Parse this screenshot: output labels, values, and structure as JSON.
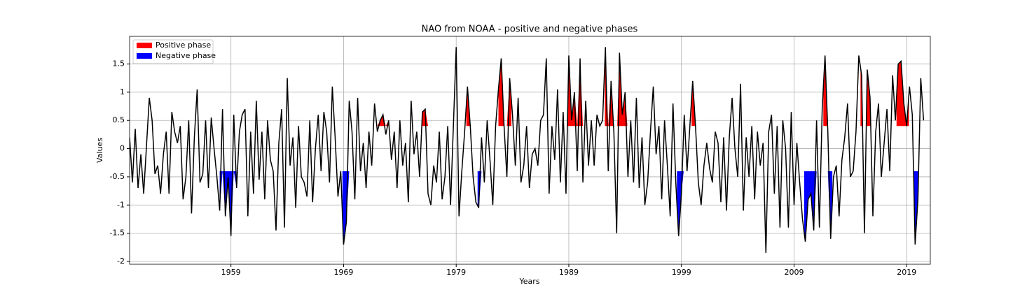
{
  "chart_data": {
    "type": "line",
    "title": "NAO from NOAA - positive and negative phases",
    "x_label": "Years",
    "y_label": "Values",
    "xlim": [
      1950,
      2021.1
    ],
    "xticks": [
      1959,
      1969,
      1979,
      1989,
      1999,
      2009,
      2019
    ],
    "ylim": [
      -2.05,
      1.99
    ],
    "yticks": [
      -2.0,
      -1.5,
      -1.0,
      -0.5,
      0.0,
      0.5,
      1.0,
      1.5
    ],
    "grid": true,
    "legend": "upper left",
    "x": [
      1950,
      1950.25,
      1950.5,
      1950.75,
      1951,
      1951.25,
      1951.5,
      1951.75,
      1952,
      1952.25,
      1952.5,
      1952.75,
      1953,
      1953.25,
      1953.5,
      1953.75,
      1954,
      1954.25,
      1954.5,
      1954.75,
      1955,
      1955.25,
      1955.5,
      1955.75,
      1956,
      1956.25,
      1956.5,
      1956.75,
      1957,
      1957.25,
      1957.5,
      1957.75,
      1958,
      1958.25,
      1958.5,
      1958.75,
      1959,
      1959.25,
      1959.5,
      1959.75,
      1960,
      1960.25,
      1960.5,
      1960.75,
      1961,
      1961.25,
      1961.5,
      1961.75,
      1962,
      1962.25,
      1962.5,
      1962.75,
      1963,
      1963.25,
      1963.5,
      1963.75,
      1964,
      1964.25,
      1964.5,
      1964.75,
      1965,
      1965.25,
      1965.5,
      1965.75,
      1966,
      1966.25,
      1966.5,
      1966.75,
      1967,
      1967.25,
      1967.5,
      1967.75,
      1968,
      1968.25,
      1968.5,
      1968.75,
      1969,
      1969.25,
      1969.5,
      1969.75,
      1970,
      1970.25,
      1970.5,
      1970.75,
      1971,
      1971.25,
      1971.5,
      1971.75,
      1972,
      1972.25,
      1972.5,
      1972.75,
      1973,
      1973.25,
      1973.5,
      1973.75,
      1974,
      1974.25,
      1974.5,
      1974.75,
      1975,
      1975.25,
      1975.5,
      1975.75,
      1976,
      1976.25,
      1976.5,
      1976.75,
      1977,
      1977.25,
      1977.5,
      1977.75,
      1978,
      1978.25,
      1978.5,
      1978.75,
      1979,
      1979.25,
      1979.5,
      1979.75,
      1980,
      1980.25,
      1980.5,
      1980.75,
      1981,
      1981.25,
      1981.5,
      1981.75,
      1982,
      1982.25,
      1982.5,
      1982.75,
      1983,
      1983.25,
      1983.5,
      1983.75,
      1984,
      1984.25,
      1984.5,
      1984.75,
      1985,
      1985.25,
      1985.5,
      1985.75,
      1986,
      1986.25,
      1986.5,
      1986.75,
      1987,
      1987.25,
      1987.5,
      1987.75,
      1988,
      1988.25,
      1988.5,
      1988.75,
      1989,
      1989.25,
      1989.5,
      1989.75,
      1990,
      1990.25,
      1990.5,
      1990.75,
      1991,
      1991.25,
      1991.5,
      1991.75,
      1992,
      1992.25,
      1992.5,
      1992.75,
      1993,
      1993.25,
      1993.5,
      1993.75,
      1994,
      1994.25,
      1994.5,
      1994.75,
      1995,
      1995.25,
      1995.5,
      1995.75,
      1996,
      1996.25,
      1996.5,
      1996.75,
      1997,
      1997.25,
      1997.5,
      1997.75,
      1998,
      1998.25,
      1998.5,
      1998.75,
      1999,
      1999.25,
      1999.5,
      1999.75,
      2000,
      2000.25,
      2000.5,
      2000.75,
      2001,
      2001.25,
      2001.5,
      2001.75,
      2002,
      2002.25,
      2002.5,
      2002.75,
      2003,
      2003.25,
      2003.5,
      2003.75,
      2004,
      2004.25,
      2004.5,
      2004.75,
      2005,
      2005.25,
      2005.5,
      2005.75,
      2006,
      2006.25,
      2006.5,
      2006.75,
      2007,
      2007.25,
      2007.5,
      2007.75,
      2008,
      2008.25,
      2008.5,
      2008.75,
      2009,
      2009.25,
      2009.5,
      2009.75,
      2010,
      2010.25,
      2010.5,
      2010.75,
      2011,
      2011.25,
      2011.5,
      2011.75,
      2012,
      2012.25,
      2012.5,
      2012.75,
      2013,
      2013.25,
      2013.5,
      2013.75,
      2014,
      2014.25,
      2014.5,
      2014.75,
      2015,
      2015.25,
      2015.5,
      2015.75,
      2016,
      2016.25,
      2016.5,
      2016.75,
      2017,
      2017.25,
      2017.5,
      2017.75,
      2018,
      2018.25,
      2018.5,
      2018.75,
      2019,
      2019.25,
      2019.5,
      2019.75,
      2020,
      2020.25,
      2020.5
    ],
    "series": [
      {
        "name": "NAO",
        "color": "#000000",
        "values": [
          0.2,
          -0.6,
          0.35,
          -0.7,
          -0.1,
          -0.8,
          0.05,
          0.9,
          0.5,
          -0.45,
          -0.3,
          -0.8,
          -0.1,
          0.3,
          -0.8,
          0.65,
          0.3,
          0.1,
          0.4,
          -0.9,
          -0.5,
          0.5,
          -1.15,
          0.2,
          1.05,
          -0.6,
          -0.45,
          0.5,
          -0.7,
          0.55,
          0.0,
          -0.5,
          -1.1,
          0.7,
          -1.2,
          -0.5,
          -1.55,
          0.6,
          -0.7,
          0.3,
          0.6,
          0.7,
          -1.2,
          0.3,
          -0.8,
          0.85,
          -0.55,
          0.3,
          -0.9,
          0.5,
          -0.2,
          -0.4,
          -1.45,
          0.1,
          0.7,
          -1.4,
          1.25,
          -0.3,
          0.2,
          -1.05,
          0.4,
          -0.5,
          -0.6,
          -0.85,
          0.5,
          -0.95,
          0.0,
          0.6,
          -0.4,
          0.65,
          0.3,
          -0.6,
          1.1,
          0.2,
          -0.85,
          -0.4,
          -1.7,
          -1.3,
          0.85,
          0.3,
          -0.9,
          0.9,
          -0.4,
          0.1,
          -0.7,
          0.3,
          -0.3,
          0.8,
          0.3,
          0.5,
          0.6,
          0.25,
          0.5,
          -0.2,
          0.3,
          -0.7,
          0.5,
          -0.3,
          0.1,
          -0.95,
          0.85,
          -0.1,
          0.3,
          -0.5,
          0.65,
          0.7,
          -0.8,
          -1.0,
          -0.3,
          -0.6,
          0.3,
          -0.9,
          -0.5,
          0.4,
          -1.0,
          0.4,
          1.8,
          -1.2,
          -0.4,
          0.3,
          1.1,
          0.4,
          -0.5,
          -0.95,
          -1.05,
          0.2,
          -0.6,
          0.5,
          -0.2,
          -1.0,
          0.4,
          1.05,
          1.6,
          0.4,
          -0.5,
          1.25,
          0.6,
          -0.3,
          0.9,
          -0.6,
          -0.3,
          0.4,
          -0.7,
          -0.1,
          0.0,
          -0.3,
          0.5,
          0.6,
          1.6,
          -0.8,
          0.4,
          -0.2,
          1.05,
          -0.6,
          0.65,
          -0.8,
          1.65,
          0.5,
          1.0,
          -0.4,
          1.6,
          -0.6,
          0.85,
          -0.3,
          0.5,
          -0.3,
          0.6,
          0.4,
          0.5,
          1.8,
          -0.4,
          1.2,
          0.3,
          -1.5,
          1.7,
          0.6,
          1.0,
          -0.5,
          0.5,
          -0.6,
          0.9,
          -0.7,
          0.2,
          -1.0,
          -0.6,
          0.3,
          1.1,
          -0.1,
          0.4,
          -0.9,
          0.5,
          -0.3,
          -1.2,
          0.8,
          -0.6,
          -1.55,
          -0.8,
          0.6,
          -0.4,
          0.4,
          1.2,
          0.4,
          -0.6,
          -1.0,
          -0.3,
          0.1,
          -0.35,
          -0.6,
          0.3,
          0.1,
          -0.95,
          0.2,
          -1.1,
          0.2,
          0.9,
          0.0,
          -0.5,
          1.15,
          -1.1,
          0.2,
          -0.5,
          0.4,
          -0.9,
          0.3,
          -0.3,
          0.1,
          -1.85,
          0.3,
          0.6,
          -0.8,
          0.4,
          -1.4,
          0.5,
          0.0,
          -1.4,
          0.65,
          -1.0,
          0.1,
          -0.6,
          -1.25,
          -1.65,
          -0.9,
          -0.8,
          -1.45,
          0.5,
          -1.4,
          0.7,
          1.65,
          0.3,
          -1.6,
          -0.5,
          -0.3,
          -1.2,
          -0.2,
          0.2,
          0.8,
          -0.5,
          -0.4,
          0.3,
          1.65,
          1.3,
          -1.5,
          1.4,
          0.9,
          -1.2,
          0.3,
          0.8,
          -0.5,
          0.1,
          0.7,
          -0.4,
          1.3,
          0.5,
          1.5,
          1.55,
          0.8,
          0.4,
          1.1,
          0.6,
          -1.7,
          -0.9,
          1.25,
          0.5
        ]
      }
    ],
    "phases": [
      {
        "name": "Positive phase",
        "color": "#ff0000",
        "base": 0.4,
        "ranges": [
          [
            1972,
            1973
          ],
          [
            1976,
            1976.5
          ],
          [
            1979.9,
            1980.4
          ],
          [
            1982.75,
            1983.9
          ],
          [
            1988.9,
            1990.3
          ],
          [
            1992.2,
            1993
          ],
          [
            1993.3,
            1994.2
          ],
          [
            1999.9,
            2000.4
          ],
          [
            2011.6,
            2012
          ],
          [
            2014.9,
            2015.1
          ],
          [
            2015.4,
            2015.8
          ],
          [
            2018.1,
            2019.2
          ]
        ]
      },
      {
        "name": "Negative phase",
        "color": "#0000ff",
        "base": -0.4,
        "ranges": [
          [
            1958,
            1959.5
          ],
          [
            1968.9,
            1969.5
          ],
          [
            1980.9,
            1981.3
          ],
          [
            1998.6,
            1999.2
          ],
          [
            2009.9,
            2011.1
          ],
          [
            2012,
            2012.4
          ],
          [
            2019.6,
            2020
          ]
        ]
      }
    ]
  }
}
